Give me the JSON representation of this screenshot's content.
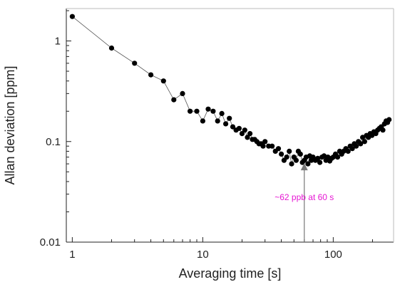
{
  "chart_data": {
    "type": "scatter",
    "xlabel": "Averaging time [s]",
    "ylabel": "Allan deviation [ppm]",
    "xscale": "log",
    "yscale": "log",
    "xlim": [
      0.9,
      290
    ],
    "ylim": [
      0.01,
      2.1
    ],
    "x_ticks": [
      {
        "value": 1,
        "label": "1"
      },
      {
        "value": 10,
        "label": "10"
      },
      {
        "value": 100,
        "label": "100"
      }
    ],
    "y_ticks": [
      {
        "value": 0.01,
        "label": "0.01"
      },
      {
        "value": 0.1,
        "label": "0.1"
      },
      {
        "value": 1,
        "label": "1"
      }
    ],
    "grid": false,
    "series": [
      {
        "color": "#000000",
        "marker": "circle",
        "line": true,
        "x": [
          1,
          2,
          3,
          4,
          5,
          6,
          7,
          8,
          9,
          10,
          11,
          12,
          13,
          14,
          15,
          16,
          17,
          18,
          19,
          20,
          21,
          22,
          23,
          24,
          25,
          26,
          27,
          28,
          29,
          30,
          32,
          34,
          36,
          38,
          40,
          42,
          44,
          46,
          48,
          50,
          52,
          54,
          56,
          58,
          60,
          62,
          64,
          66,
          68,
          70,
          73,
          76,
          79,
          82,
          85,
          88,
          91,
          94,
          97,
          100,
          104,
          108,
          112,
          116,
          120,
          125,
          130,
          135,
          140,
          145,
          150,
          156,
          162,
          168,
          174,
          180,
          186,
          192,
          198,
          205,
          212,
          219,
          226,
          233,
          240,
          247,
          254,
          261,
          268
        ],
        "y": [
          1.75,
          0.85,
          0.6,
          0.46,
          0.4,
          0.26,
          0.3,
          0.2,
          0.2,
          0.16,
          0.21,
          0.2,
          0.16,
          0.19,
          0.15,
          0.17,
          0.14,
          0.13,
          0.135,
          0.12,
          0.13,
          0.11,
          0.12,
          0.105,
          0.105,
          0.1,
          0.095,
          0.095,
          0.09,
          0.1,
          0.09,
          0.09,
          0.08,
          0.085,
          0.075,
          0.065,
          0.07,
          0.08,
          0.06,
          0.07,
          0.065,
          0.08,
          0.075,
          0.062,
          0.065,
          0.07,
          0.06,
          0.072,
          0.065,
          0.07,
          0.065,
          0.068,
          0.062,
          0.07,
          0.072,
          0.065,
          0.07,
          0.064,
          0.068,
          0.07,
          0.075,
          0.07,
          0.08,
          0.075,
          0.08,
          0.085,
          0.08,
          0.09,
          0.085,
          0.095,
          0.09,
          0.1,
          0.095,
          0.11,
          0.1,
          0.115,
          0.11,
          0.12,
          0.115,
          0.125,
          0.12,
          0.13,
          0.135,
          0.14,
          0.13,
          0.15,
          0.16,
          0.155,
          0.165
        ]
      }
    ],
    "annotations": [
      {
        "text": "~62 ppb at 60 s",
        "x": 60,
        "y": 0.062,
        "arrow": "up",
        "color": "#e617d3"
      }
    ]
  }
}
